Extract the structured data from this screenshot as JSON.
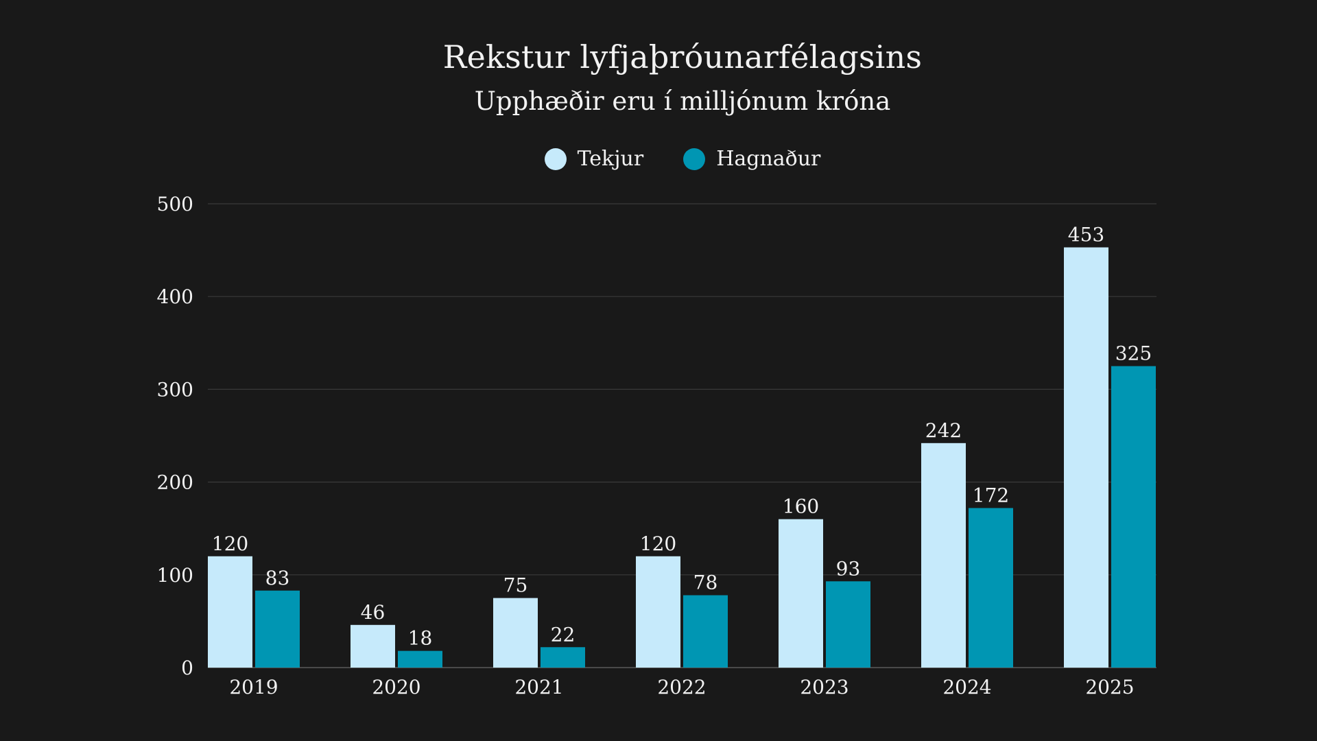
{
  "chart_data": {
    "type": "bar",
    "title": "Rekstur lyfjaþróunarfélagsins",
    "subtitle": "Upphæðir eru í milljónum króna",
    "categories": [
      "2019",
      "2020",
      "2021",
      "2022",
      "2023",
      "2024",
      "2025"
    ],
    "series": [
      {
        "name": "Tekjur",
        "color": "#c6eafb",
        "values": [
          120,
          46,
          75,
          120,
          160,
          242,
          453
        ]
      },
      {
        "name": "Hagnaður",
        "color": "#0096b3",
        "values": [
          83,
          18,
          22,
          78,
          93,
          172,
          325
        ]
      }
    ],
    "ylim": [
      0,
      500
    ],
    "yticks": [
      0,
      100,
      200,
      300,
      400,
      500
    ],
    "grid": true,
    "legend_position": "top-center",
    "data_labels": true,
    "colors": {
      "background": "#191919",
      "text": "#f2f2f2",
      "grid": "#3a3a3a"
    }
  }
}
